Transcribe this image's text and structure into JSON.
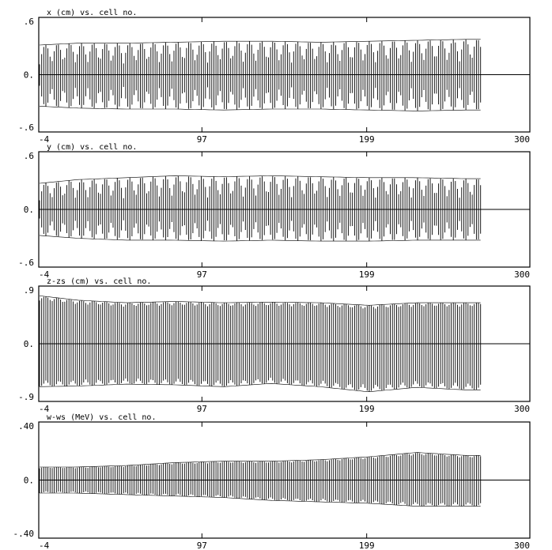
{
  "chart_data": [
    {
      "type": "area",
      "title": "x (cm) vs. cell no.",
      "xlabel": "cell no.",
      "ylabel": "x (cm)",
      "xlim": [
        -4,
        300
      ],
      "ylim": [
        -0.6,
        0.6
      ],
      "x_tick_labels": [
        "-4",
        "97",
        "199",
        "300"
      ],
      "y_tick_labels": [
        ".6",
        "0.",
        "-.6"
      ],
      "grid": false,
      "series": [
        {
          "x": [
            -4,
            20,
            50,
            80,
            110,
            140,
            170,
            200,
            230,
            260
          ],
          "upper": [
            0.31,
            0.33,
            0.33,
            0.34,
            0.35,
            0.35,
            0.34,
            0.35,
            0.36,
            0.37
          ],
          "lower": [
            -0.33,
            -0.35,
            -0.36,
            -0.36,
            -0.37,
            -0.36,
            -0.36,
            -0.37,
            -0.38,
            -0.37
          ]
        }
      ]
    },
    {
      "type": "area",
      "title": "y (cm) vs. cell no.",
      "xlabel": "cell no.",
      "ylabel": "y (cm)",
      "xlim": [
        -4,
        300
      ],
      "ylim": [
        -0.6,
        0.6
      ],
      "x_tick_labels": [
        "-4",
        "97",
        "199",
        "300"
      ],
      "y_tick_labels": [
        ".6",
        "0.",
        "-.6"
      ],
      "grid": false,
      "series": [
        {
          "x": [
            -4,
            20,
            50,
            80,
            110,
            140,
            170,
            200,
            230,
            260
          ],
          "upper": [
            0.27,
            0.31,
            0.33,
            0.35,
            0.34,
            0.35,
            0.34,
            0.33,
            0.33,
            0.32
          ],
          "lower": [
            -0.27,
            -0.3,
            -0.32,
            -0.32,
            -0.33,
            -0.32,
            -0.33,
            -0.33,
            -0.32,
            -0.32
          ]
        }
      ]
    },
    {
      "type": "area",
      "title": "z-zs (cm)  vs. cell no.",
      "xlabel": "cell no.",
      "ylabel": "z-zs (cm)",
      "xlim": [
        -4,
        300
      ],
      "ylim": [
        -0.9,
        0.9
      ],
      "x_tick_labels": [
        "-4",
        "97",
        "199",
        "300"
      ],
      "y_tick_labels": [
        ".9",
        "0.",
        "-.9"
      ],
      "grid": false,
      "series": [
        {
          "x": [
            -4,
            20,
            50,
            80,
            110,
            140,
            170,
            200,
            230,
            260
          ],
          "upper": [
            0.75,
            0.68,
            0.64,
            0.66,
            0.64,
            0.65,
            0.64,
            0.6,
            0.64,
            0.64
          ],
          "lower": [
            -0.67,
            -0.66,
            -0.63,
            -0.64,
            -0.67,
            -0.62,
            -0.67,
            -0.75,
            -0.68,
            -0.72
          ]
        }
      ]
    },
    {
      "type": "area",
      "title": "w-ws (MeV) vs. cell no.",
      "xlabel": "cell no.",
      "ylabel": "w-ws (MeV)",
      "xlim": [
        -4,
        300
      ],
      "ylim": [
        -0.4,
        0.4
      ],
      "x_tick_labels": [
        "-4",
        "97",
        "199",
        "300"
      ],
      "y_tick_labels": [
        ".40",
        "0.",
        "-.40"
      ],
      "grid": false,
      "series": [
        {
          "x": [
            -4,
            20,
            50,
            80,
            110,
            140,
            170,
            200,
            230,
            260
          ],
          "upper": [
            0.09,
            0.09,
            0.1,
            0.12,
            0.13,
            0.13,
            0.14,
            0.16,
            0.19,
            0.17
          ],
          "lower": [
            -0.09,
            -0.09,
            -0.1,
            -0.11,
            -0.12,
            -0.14,
            -0.15,
            -0.16,
            -0.18,
            -0.18
          ]
        }
      ]
    }
  ]
}
